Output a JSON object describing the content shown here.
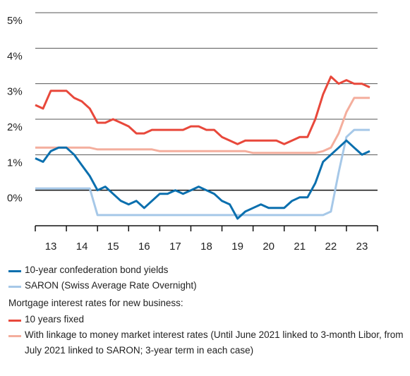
{
  "chart_data": {
    "type": "line",
    "x": [
      2013.0,
      2013.25,
      2013.5,
      2013.75,
      2014.0,
      2014.25,
      2014.5,
      2014.75,
      2015.0,
      2015.25,
      2015.5,
      2015.75,
      2016.0,
      2016.25,
      2016.5,
      2016.75,
      2017.0,
      2017.25,
      2017.5,
      2017.75,
      2018.0,
      2018.25,
      2018.5,
      2018.75,
      2019.0,
      2019.25,
      2019.5,
      2019.75,
      2020.0,
      2020.25,
      2020.5,
      2020.75,
      2021.0,
      2021.25,
      2021.5,
      2021.75,
      2022.0,
      2022.25,
      2022.5,
      2022.75,
      2023.0,
      2023.25,
      2023.5,
      2023.75
    ],
    "series": [
      {
        "name": "10-year confederation bond yields",
        "color": "#0a6fae",
        "values": [
          0.9,
          0.8,
          1.1,
          1.2,
          1.2,
          1.0,
          0.7,
          0.4,
          0.0,
          0.1,
          -0.1,
          -0.3,
          -0.4,
          -0.3,
          -0.5,
          -0.3,
          -0.1,
          -0.1,
          0.0,
          -0.1,
          0.0,
          0.1,
          0.0,
          -0.1,
          -0.3,
          -0.4,
          -0.8,
          -0.6,
          -0.5,
          -0.4,
          -0.5,
          -0.5,
          -0.5,
          -0.3,
          -0.2,
          -0.2,
          0.2,
          0.8,
          1.0,
          1.2,
          1.4,
          1.2,
          1.0,
          1.1
        ]
      },
      {
        "name": "SARON (Swiss Average Rate Overnight)",
        "color": "#a6c8e8",
        "values": [
          0.05,
          0.05,
          0.05,
          0.05,
          0.05,
          0.05,
          0.05,
          0.05,
          -0.7,
          -0.7,
          -0.7,
          -0.7,
          -0.7,
          -0.7,
          -0.7,
          -0.7,
          -0.7,
          -0.7,
          -0.7,
          -0.7,
          -0.7,
          -0.7,
          -0.7,
          -0.7,
          -0.7,
          -0.7,
          -0.7,
          -0.7,
          -0.7,
          -0.7,
          -0.7,
          -0.7,
          -0.7,
          -0.7,
          -0.7,
          -0.7,
          -0.7,
          -0.7,
          -0.6,
          0.5,
          1.5,
          1.7,
          1.7,
          1.7
        ]
      },
      {
        "name": "10 years fixed",
        "color": "#e8483b",
        "values": [
          2.4,
          2.3,
          2.8,
          2.8,
          2.8,
          2.6,
          2.5,
          2.3,
          1.9,
          1.9,
          2.0,
          1.9,
          1.8,
          1.6,
          1.6,
          1.7,
          1.7,
          1.7,
          1.7,
          1.7,
          1.8,
          1.8,
          1.7,
          1.7,
          1.5,
          1.4,
          1.3,
          1.4,
          1.4,
          1.4,
          1.4,
          1.4,
          1.3,
          1.4,
          1.5,
          1.5,
          2.0,
          2.7,
          3.2,
          3.0,
          3.1,
          3.0,
          3.0,
          2.9
        ]
      },
      {
        "name": "With linkage to money market interest rates (Until June 2021 linked to 3-month Libor, from July 2021 linked to SARON; 3-year term in each case)",
        "color": "#f4ae9d",
        "values": [
          1.2,
          1.2,
          1.2,
          1.2,
          1.2,
          1.2,
          1.2,
          1.2,
          1.15,
          1.15,
          1.15,
          1.15,
          1.15,
          1.15,
          1.15,
          1.15,
          1.1,
          1.1,
          1.1,
          1.1,
          1.1,
          1.1,
          1.1,
          1.1,
          1.1,
          1.1,
          1.1,
          1.1,
          1.05,
          1.05,
          1.05,
          1.05,
          1.05,
          1.05,
          1.05,
          1.05,
          1.05,
          1.1,
          1.2,
          1.6,
          2.2,
          2.6,
          2.6,
          2.6
        ]
      }
    ],
    "legend_header": "Mortgage interest rates for new business:",
    "xlim": [
      2013,
      2024
    ],
    "xticks": [
      2013,
      2014,
      2015,
      2016,
      2017,
      2018,
      2019,
      2020,
      2021,
      2022,
      2023,
      2024
    ],
    "xlabels": [
      {
        "value": 2013.5,
        "label": "13"
      },
      {
        "value": 2014.5,
        "label": "14"
      },
      {
        "value": 2015.5,
        "label": "15"
      },
      {
        "value": 2016.5,
        "label": "16"
      },
      {
        "value": 2017.5,
        "label": "17"
      },
      {
        "value": 2018.5,
        "label": "18"
      },
      {
        "value": 2019.5,
        "label": "19"
      },
      {
        "value": 2020.5,
        "label": "20"
      },
      {
        "value": 2021.5,
        "label": "21"
      },
      {
        "value": 2022.5,
        "label": "22"
      },
      {
        "value": 2023.5,
        "label": "23"
      }
    ],
    "ylim": [
      -1,
      5
    ],
    "yticks": [
      {
        "value": 0,
        "label": "0%"
      },
      {
        "value": 1,
        "label": "1%"
      },
      {
        "value": 2,
        "label": "2%"
      },
      {
        "value": 3,
        "label": "3%"
      },
      {
        "value": 4,
        "label": "4%"
      },
      {
        "value": 5,
        "label": "5%"
      }
    ],
    "grid": true
  }
}
